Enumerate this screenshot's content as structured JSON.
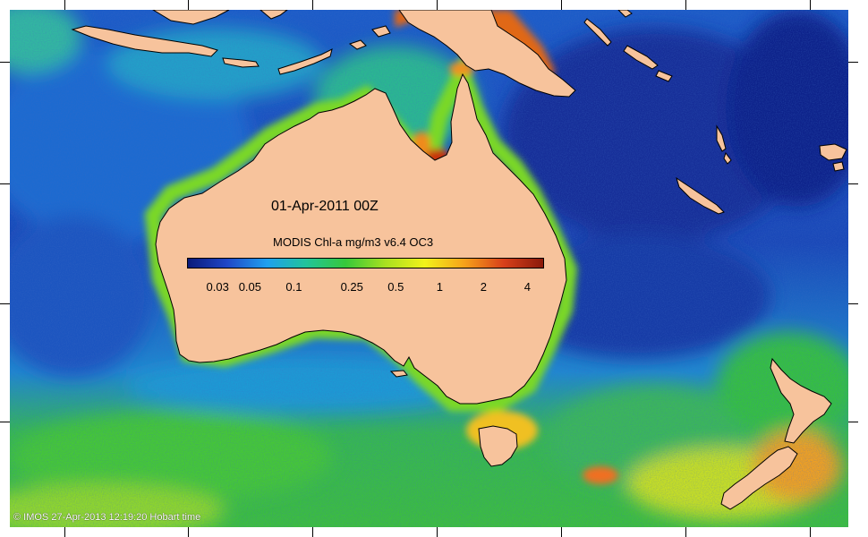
{
  "map": {
    "title": "01-Apr-2011 00Z",
    "colorbar": {
      "label": "MODIS Chl-a mg/m3 v6.4 OC3",
      "scale": "log",
      "colors": [
        "#0a1a7a",
        "#1f48c8",
        "#1fa0ee",
        "#22c49a",
        "#36c83a",
        "#a8e020",
        "#f2f21a",
        "#f6a21a",
        "#d8401a",
        "#8a1a0a"
      ],
      "ticks": [
        {
          "label": "0.03",
          "value": 0.03
        },
        {
          "label": "0.05",
          "value": 0.05
        },
        {
          "label": "0.1",
          "value": 0.1
        },
        {
          "label": "0.25",
          "value": 0.25
        },
        {
          "label": "0.5",
          "value": 0.5
        },
        {
          "label": "1",
          "value": 1
        },
        {
          "label": "2",
          "value": 2
        },
        {
          "label": "4",
          "value": 4
        }
      ]
    },
    "credit": "© IMOS 27-Apr-2013 12:19:20 Hobart time",
    "colors": {
      "land": "#f7c39c",
      "ocean_deep": "#1a3aa8",
      "ocean_mid": "#1e7ad8",
      "ocean_green": "#3cbf4a",
      "coastal_high": "#d8401a"
    }
  }
}
